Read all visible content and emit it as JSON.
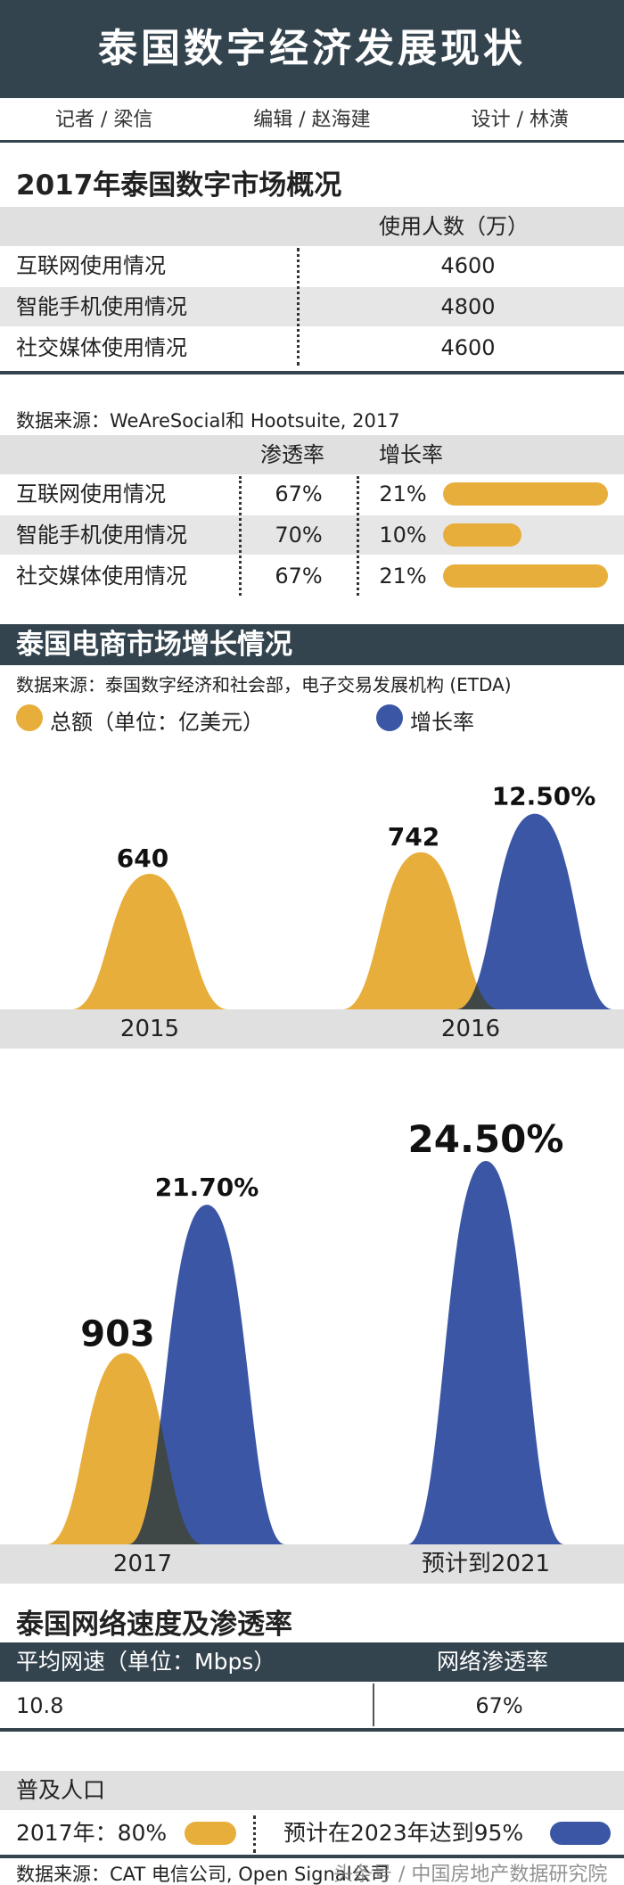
{
  "header": {
    "title": "泰国数字经济发展现状",
    "reporter": "记者 / 梁信",
    "editor": "编辑 / 赵海建",
    "designer": "设计 / 林潢"
  },
  "section1": {
    "title": "2017年泰国数字市场概况",
    "col_header": "使用人数（万）",
    "rows": [
      {
        "label": "互联网使用情况",
        "value": "4600"
      },
      {
        "label": "智能手机使用情况",
        "value": "4800"
      },
      {
        "label": "社交媒体使用情况",
        "value": "4600"
      }
    ]
  },
  "section2": {
    "source": "数据来源：WeAreSocial和 Hootsuite, 2017",
    "col_penetration": "渗透率",
    "col_growth": "增长率",
    "rows": [
      {
        "label": "互联网使用情况",
        "penetration": "67%",
        "growth": "21%",
        "growth_value": 21
      },
      {
        "label": "智能手机使用情况",
        "penetration": "70%",
        "growth": "10%",
        "growth_value": 10
      },
      {
        "label": "社交媒体使用情况",
        "penetration": "67%",
        "growth": "21%",
        "growth_value": 21
      }
    ]
  },
  "section3": {
    "title": "泰国电商市场增长情况",
    "source": "数据来源：泰国数字经济和社会部，电子交易发展机构 (ETDA)",
    "legend_total": "总额（单位：亿美元）",
    "legend_growth": "增长率"
  },
  "chart_data": {
    "type": "area",
    "categories": [
      "2015",
      "2016",
      "2017",
      "预计到2021"
    ],
    "series": [
      {
        "name": "总额（单位：亿美元）",
        "values": [
          640,
          742,
          903,
          null
        ],
        "labels": [
          "640",
          "742",
          "903",
          ""
        ],
        "color": "#e8ae3c"
      },
      {
        "name": "增长率",
        "values": [
          null,
          12.5,
          21.7,
          24.5
        ],
        "labels": [
          "",
          "12.50%",
          "21.70%",
          "24.50%"
        ],
        "color": "#3a56a4"
      }
    ]
  },
  "section4": {
    "title": "泰国网络速度及渗透率",
    "col_speed": "平均网速（单位：Mbps）",
    "col_penetration": "网络渗透率",
    "speed": "10.8",
    "penetration": "67%"
  },
  "section5": {
    "title": "普及人口",
    "current": "2017年：80%",
    "current_value": 80,
    "forecast": "预计在2023年达到95%",
    "forecast_value": 95,
    "source": "数据来源：CAT 电信公司, Open Signal公司",
    "watermark": "头条号 / 中国房地产数据研究院"
  },
  "colors": {
    "dark": "#34444f",
    "gold": "#e8ae3c",
    "blue": "#3a56a4",
    "overlap": "#3f4747"
  }
}
